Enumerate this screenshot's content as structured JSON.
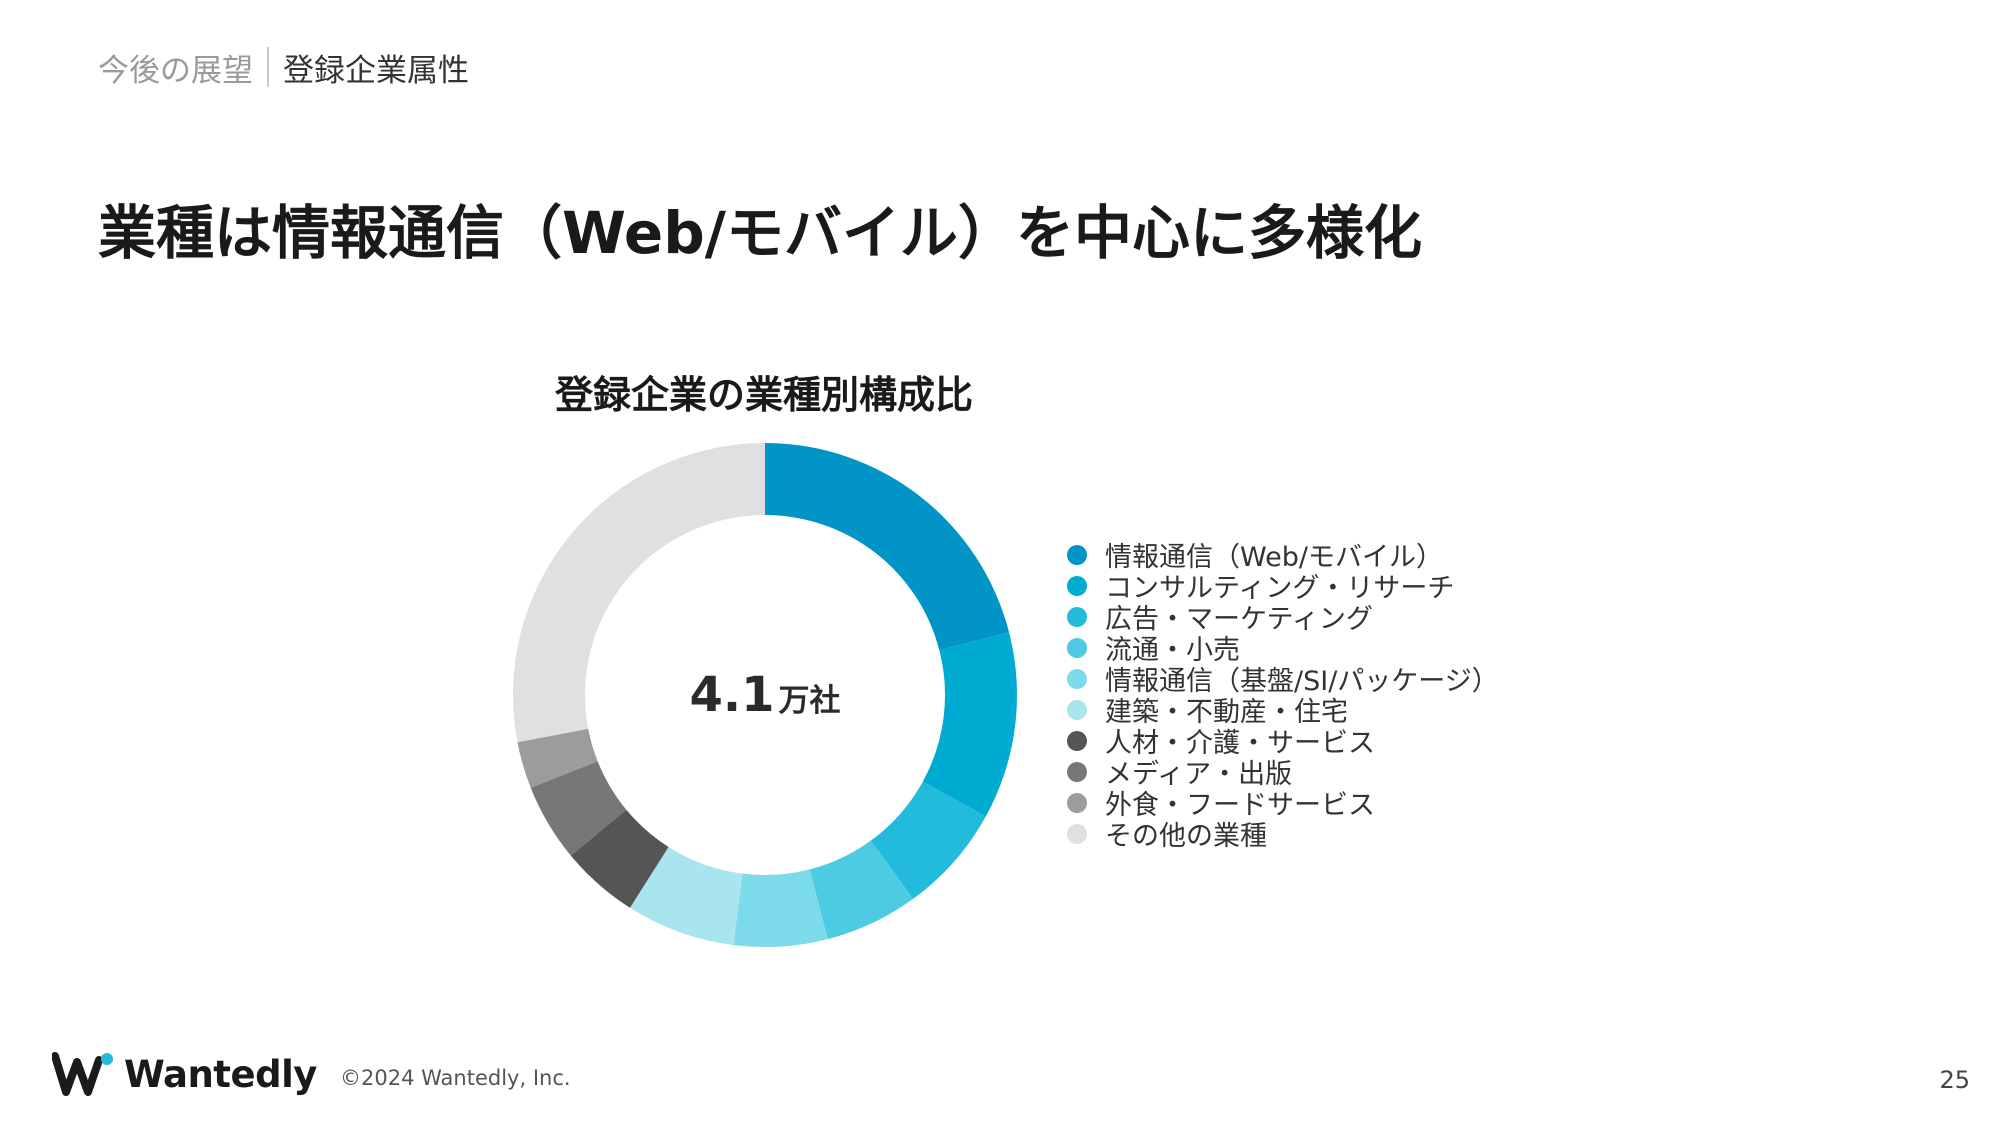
{
  "breadcrumb": {
    "parent": "今後の展望",
    "current": "登録企業属性"
  },
  "page_title": "業種は情報通信（Web/モバイル）を中心に多様化",
  "chart_data": {
    "type": "pie",
    "title": "登録企業の業種別構成比",
    "center_value": "4.1",
    "center_unit": "万社",
    "legend_position": "right",
    "categories": [
      "情報通信（Web/モバイル）",
      "コンサルティング・リサーチ",
      "広告・マーケティング",
      "流通・小売",
      "情報通信（基盤/SI/パッケージ）",
      "建築・不動産・住宅",
      "人材・介護・サービス",
      "メディア・出版",
      "外食・フードサービス",
      "その他の業種"
    ],
    "values": [
      21,
      12,
      7,
      6,
      6,
      7,
      5,
      5,
      3,
      28
    ],
    "colors": [
      "#0095c6",
      "#00abd1",
      "#22bbdb",
      "#4ccbe2",
      "#7cdaea",
      "#a9e5ef",
      "#555555",
      "#777777",
      "#9c9c9c",
      "#e0e0e0"
    ]
  },
  "footer": {
    "logo_text": "Wantedly",
    "copyright": "©2024 Wantedly, Inc.",
    "page_number": "25"
  }
}
